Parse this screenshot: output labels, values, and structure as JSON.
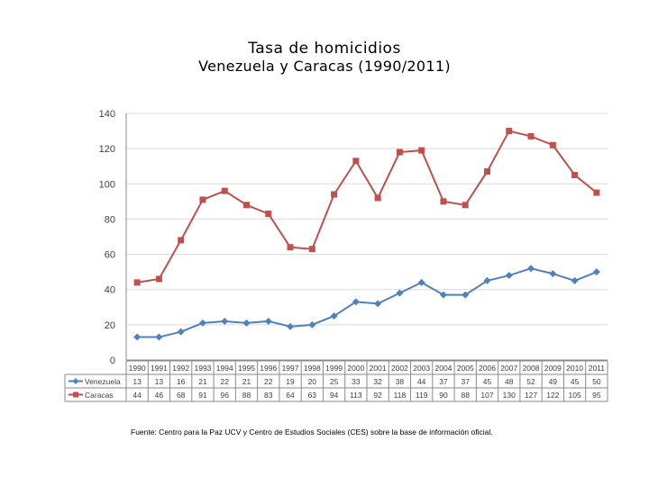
{
  "chart_data": {
    "type": "line",
    "title": "Tasa de homicidios",
    "subtitle": "Venezuela y Caracas (1990/2011)",
    "categories": [
      "1990",
      "1991",
      "1992",
      "1993",
      "1994",
      "1995",
      "1996",
      "1997",
      "1998",
      "1999",
      "2000",
      "2001",
      "2002",
      "2003",
      "2004",
      "2005",
      "2006",
      "2007",
      "2008",
      "2009",
      "2010",
      "2011"
    ],
    "series": [
      {
        "name": "Venezuela",
        "color": "#4f81bd",
        "marker": "diamond",
        "values": [
          13,
          13,
          16,
          21,
          22,
          21,
          22,
          19,
          20,
          25,
          33,
          32,
          38,
          44,
          37,
          37,
          45,
          48,
          52,
          49,
          45,
          50
        ]
      },
      {
        "name": "Caracas",
        "color": "#c0504d",
        "marker": "square",
        "values": [
          44,
          46,
          68,
          91,
          96,
          88,
          83,
          64,
          63,
          94,
          113,
          92,
          118,
          119,
          90,
          88,
          107,
          130,
          127,
          122,
          105,
          95
        ]
      }
    ],
    "ylim": [
      0,
      140
    ],
    "yticks": [
      0,
      20,
      40,
      60,
      80,
      100,
      120,
      140
    ],
    "grid": true,
    "legend": "data-table"
  },
  "source": "Fuente: Centro para la Paz UCV y Centro de Estudios Sociales (CES) sobre la base de información oficial."
}
